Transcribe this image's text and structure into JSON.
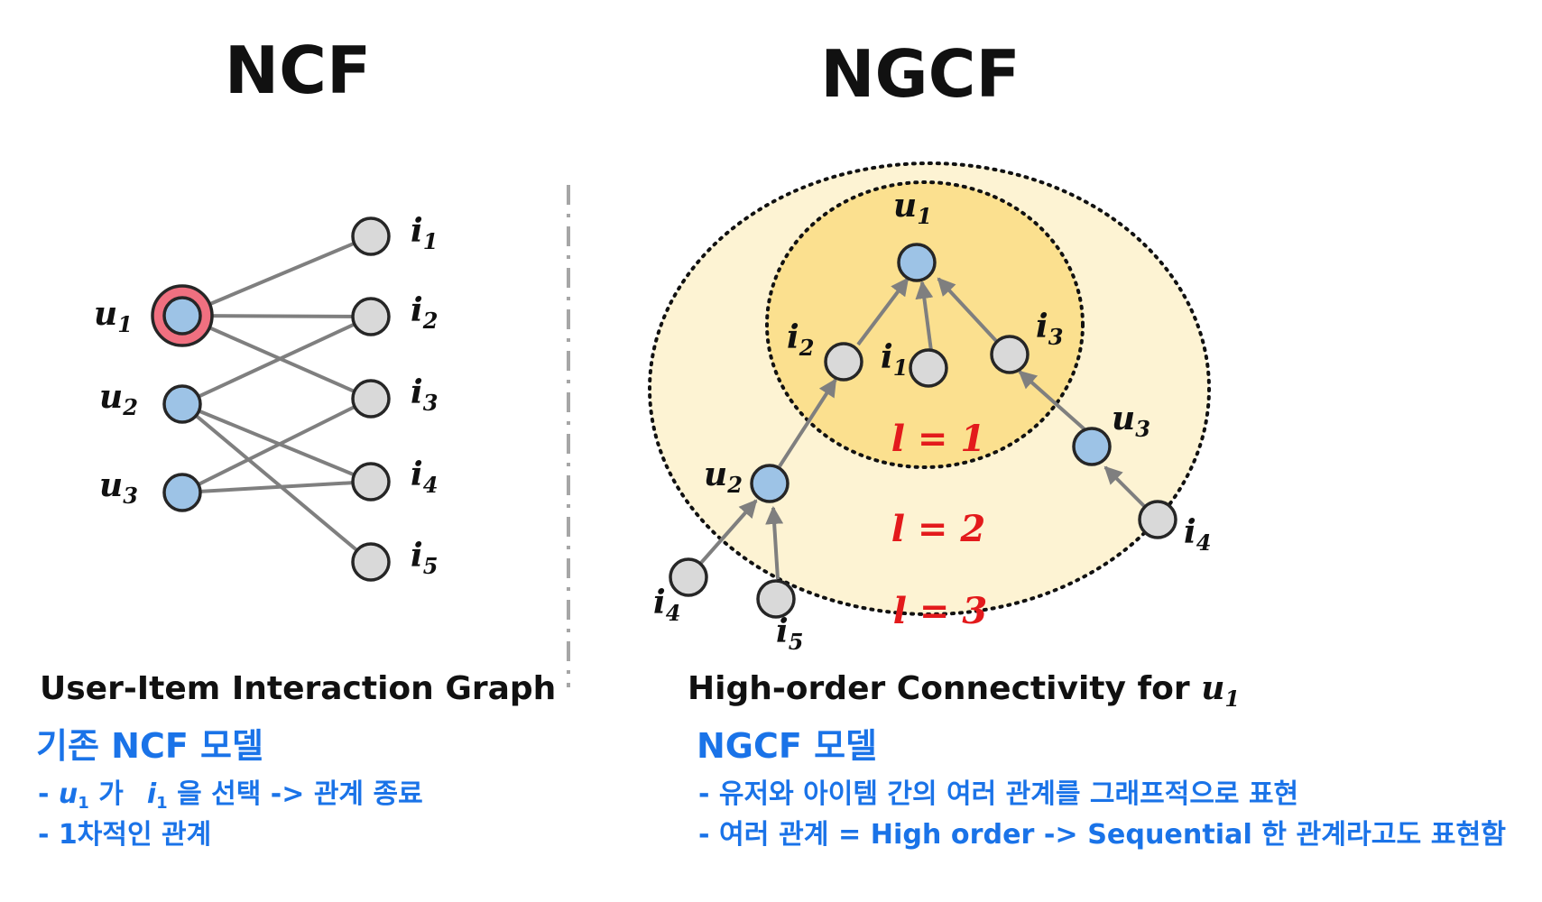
{
  "titles": {
    "left": "NCF",
    "right": "NGCF"
  },
  "ncf": {
    "users": [
      {
        "base": "u",
        "sub": "1"
      },
      {
        "base": "u",
        "sub": "2"
      },
      {
        "base": "u",
        "sub": "3"
      }
    ],
    "items": [
      {
        "base": "i",
        "sub": "1"
      },
      {
        "base": "i",
        "sub": "2"
      },
      {
        "base": "i",
        "sub": "3"
      },
      {
        "base": "i",
        "sub": "4"
      },
      {
        "base": "i",
        "sub": "5"
      }
    ],
    "edges": [
      [
        "u1",
        "i1"
      ],
      [
        "u1",
        "i2"
      ],
      [
        "u1",
        "i3"
      ],
      [
        "u2",
        "i2"
      ],
      [
        "u2",
        "i4"
      ],
      [
        "u2",
        "i5"
      ],
      [
        "u3",
        "i3"
      ],
      [
        "u3",
        "i4"
      ]
    ],
    "caption": "User-Item Interaction Graph"
  },
  "ngcf": {
    "nodes": {
      "u1": {
        "base": "u",
        "sub": "1"
      },
      "i2": {
        "base": "i",
        "sub": "2"
      },
      "i1": {
        "base": "i",
        "sub": "1"
      },
      "i3": {
        "base": "i",
        "sub": "3"
      },
      "u2": {
        "base": "u",
        "sub": "2"
      },
      "u3": {
        "base": "u",
        "sub": "3"
      },
      "i4a": {
        "base": "i",
        "sub": "4"
      },
      "i5": {
        "base": "i",
        "sub": "5"
      },
      "i4b": {
        "base": "i",
        "sub": "4"
      }
    },
    "layers": [
      "l = 1",
      "l = 2",
      "l = 3"
    ],
    "caption_text": "High-order Connectivity for ",
    "caption_var": {
      "base": "u",
      "sub": "1"
    }
  },
  "notes": {
    "left": {
      "heading": "기존 NCF 모델",
      "line1_prefix": "- ",
      "line1_u": "u",
      "line1_u_sub": "1",
      "line1_mid": " 가",
      "line1_i": "i",
      "line1_i_sub": "1",
      "line1_rest": " 을 선택 -> 관계 종료",
      "line2": "- 1차적인 관계"
    },
    "right": {
      "heading": "NGCF 모델",
      "line1": "- 유저와 아이템 간의 여러 관계를 그래프적으로 표현",
      "line2": "- 여러 관계 = High order -> Sequential 한 관계라고도 표현함"
    }
  },
  "colors": {
    "user_node": "#9dc3e6",
    "item_node": "#d9d9d9",
    "highlight_ring": "#f07080",
    "layer1_fill": "#fbe08f",
    "layer2_fill": "#fdf3d3",
    "layer_label": "#e31a1c",
    "note_text": "#1a73e8"
  }
}
